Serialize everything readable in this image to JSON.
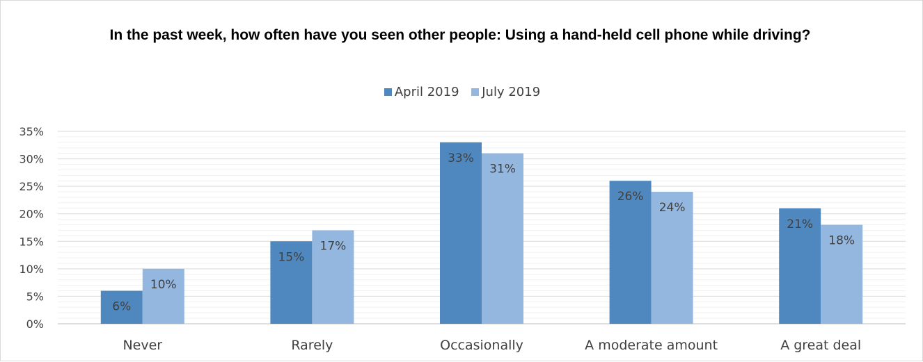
{
  "chart_data": {
    "type": "bar",
    "title": "In the past week, how often have you seen other people: Using a hand-held cell phone while driving?",
    "categories": [
      "Never",
      "Rarely",
      "Occasionally",
      "A moderate amount",
      "A great deal"
    ],
    "series": [
      {
        "name": "April 2019",
        "color": "#4e88bf",
        "values": [
          6,
          15,
          33,
          26,
          21
        ],
        "labels": [
          "6%",
          "15%",
          "33%",
          "26%",
          "21%"
        ]
      },
      {
        "name": "July 2019",
        "color": "#94b7e0",
        "values": [
          10,
          17,
          31,
          24,
          18
        ],
        "labels": [
          "10%",
          "17%",
          "31%",
          "24%",
          "18%"
        ]
      }
    ],
    "ylim": [
      0,
      35
    ],
    "yticks": [
      "0%",
      "5%",
      "10%",
      "15%",
      "20%",
      "25%",
      "30%",
      "35%"
    ],
    "grid": true,
    "legend": "top-center",
    "xlabel": "",
    "ylabel": ""
  }
}
